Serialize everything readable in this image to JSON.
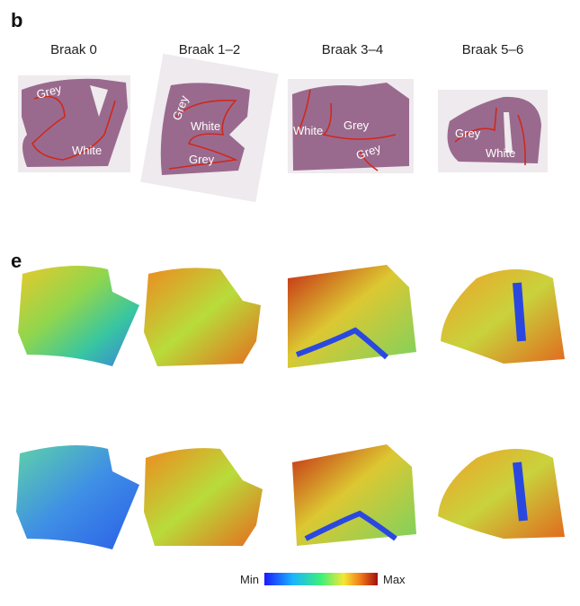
{
  "panels": [
    {
      "label": "b",
      "columns": [
        "Braak 0",
        "Braak 1–2",
        "Braak 3–4",
        "Braak 5–6"
      ],
      "annotations": [
        [
          "Grey",
          "White"
        ],
        [
          "Grey",
          "White",
          "Grey"
        ],
        [
          "White",
          "Grey",
          "Grey"
        ],
        [
          "Grey",
          "White"
        ]
      ]
    },
    {
      "label": "e"
    }
  ],
  "colorbar": {
    "min": "Min",
    "max": "Max"
  }
}
